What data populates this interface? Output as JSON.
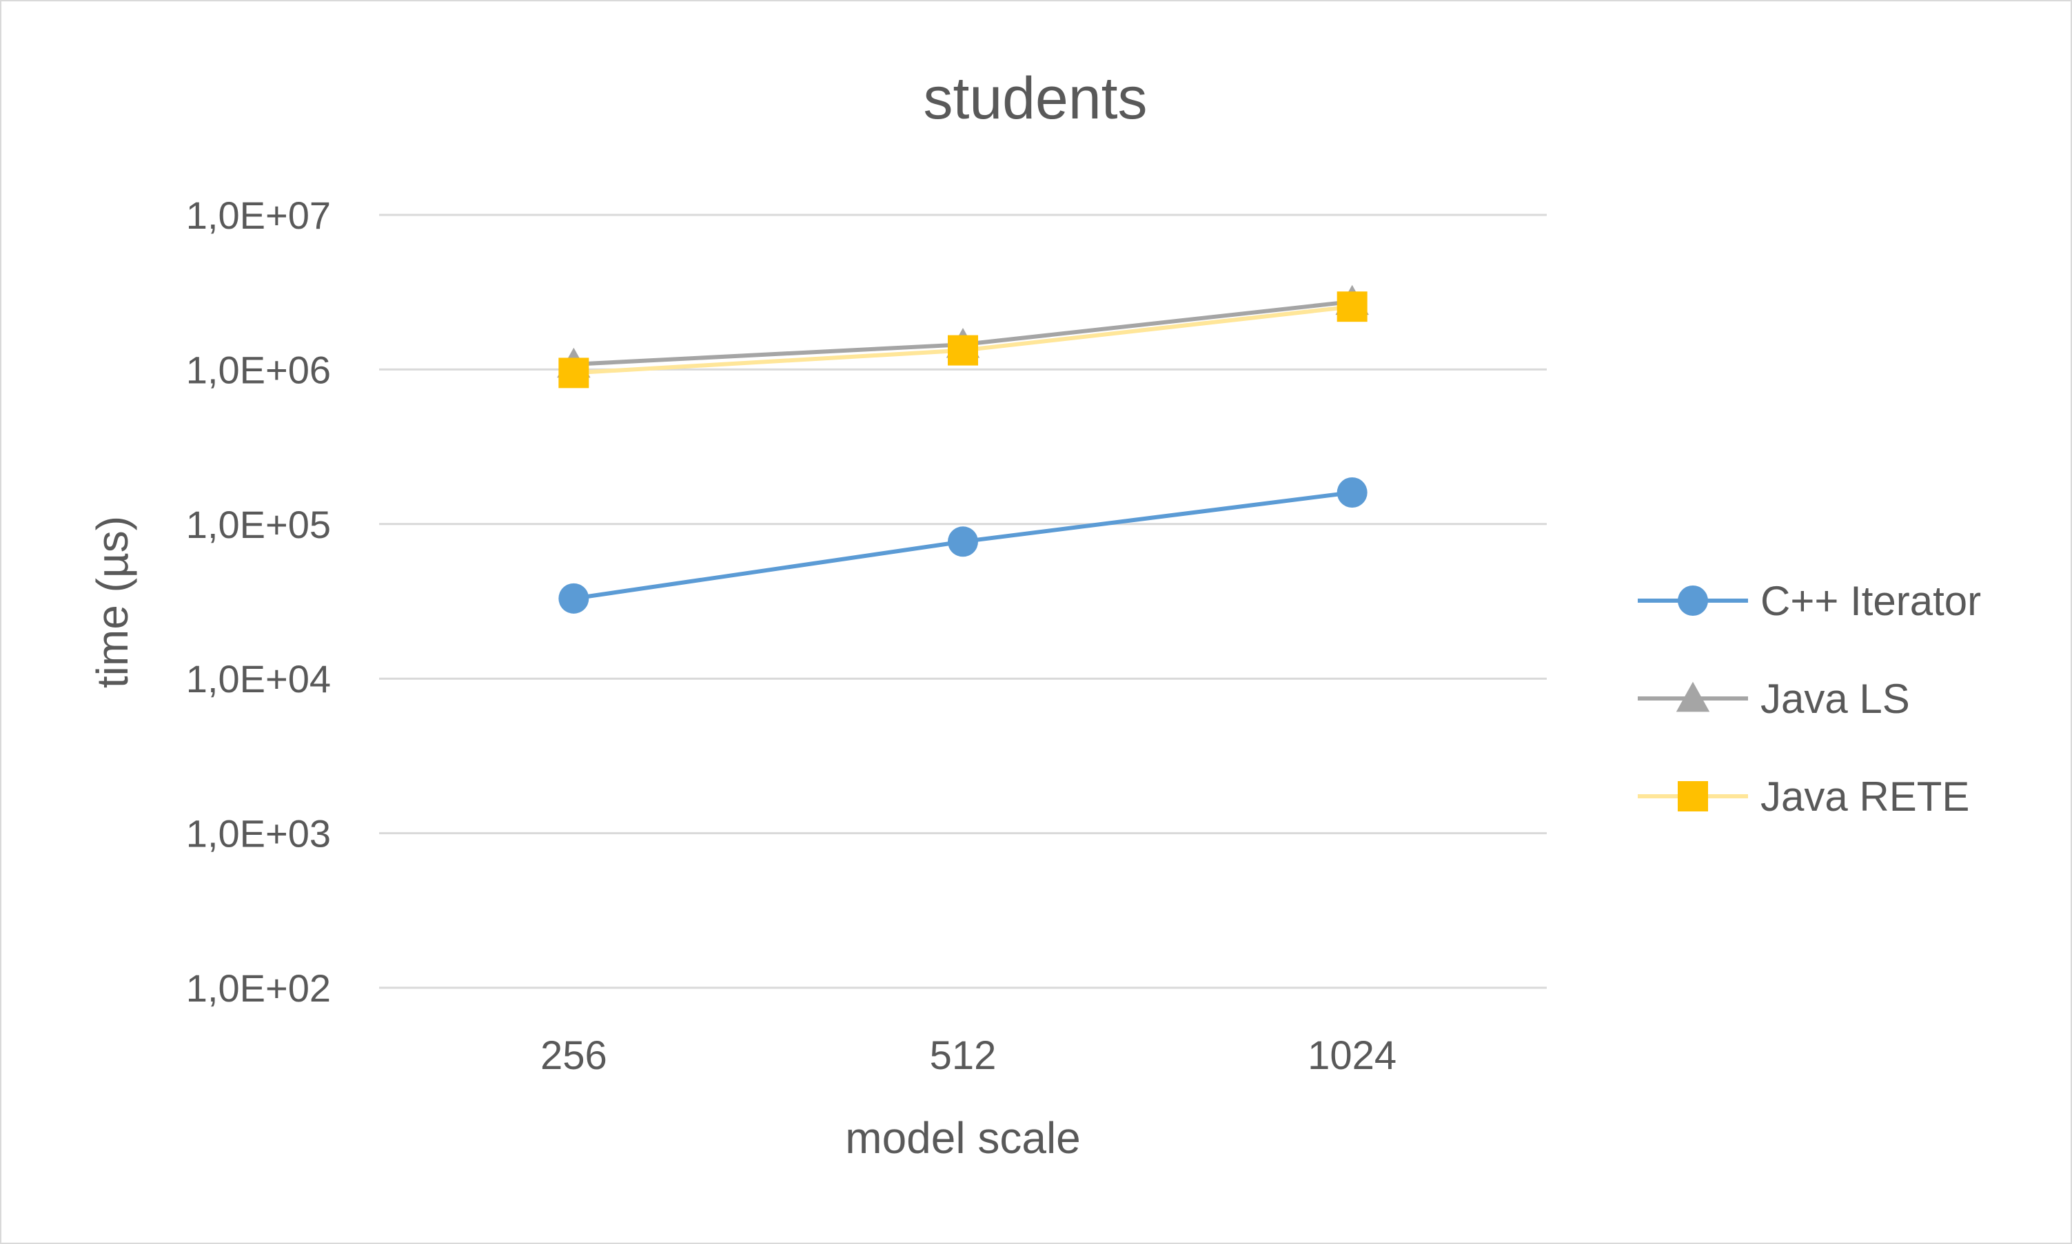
{
  "chart_data": {
    "type": "line",
    "title": "students",
    "xlabel": "model scale",
    "ylabel": "time (µs)",
    "y_scale": "log",
    "ylim": [
      100,
      10000000
    ],
    "grid": true,
    "legend_position": "right",
    "categories": [
      "256",
      "512",
      "1024"
    ],
    "y_ticks": [
      {
        "value": 100,
        "label": "1,0E+02"
      },
      {
        "value": 1000,
        "label": "1,0E+03"
      },
      {
        "value": 10000,
        "label": "1,0E+04"
      },
      {
        "value": 100000,
        "label": "1,0E+05"
      },
      {
        "value": 1000000,
        "label": "1,0E+06"
      },
      {
        "value": 10000000,
        "label": "1,0E+07"
      }
    ],
    "series": [
      {
        "name": "C++ Iterator",
        "values": [
          33000,
          77000,
          160000
        ],
        "color": "#5b9bd5",
        "line_color": "#5b9bd5",
        "marker": "circle"
      },
      {
        "name": "Java LS",
        "values": [
          1080000,
          1450000,
          2750000
        ],
        "color": "#a5a5a5",
        "line_color": "#a5a5a5",
        "marker": "triangle"
      },
      {
        "name": "Java RETE",
        "values": [
          950000,
          1330000,
          2550000
        ],
        "color": "#ffc000",
        "line_color": "#ffe699",
        "marker": "square"
      }
    ]
  }
}
